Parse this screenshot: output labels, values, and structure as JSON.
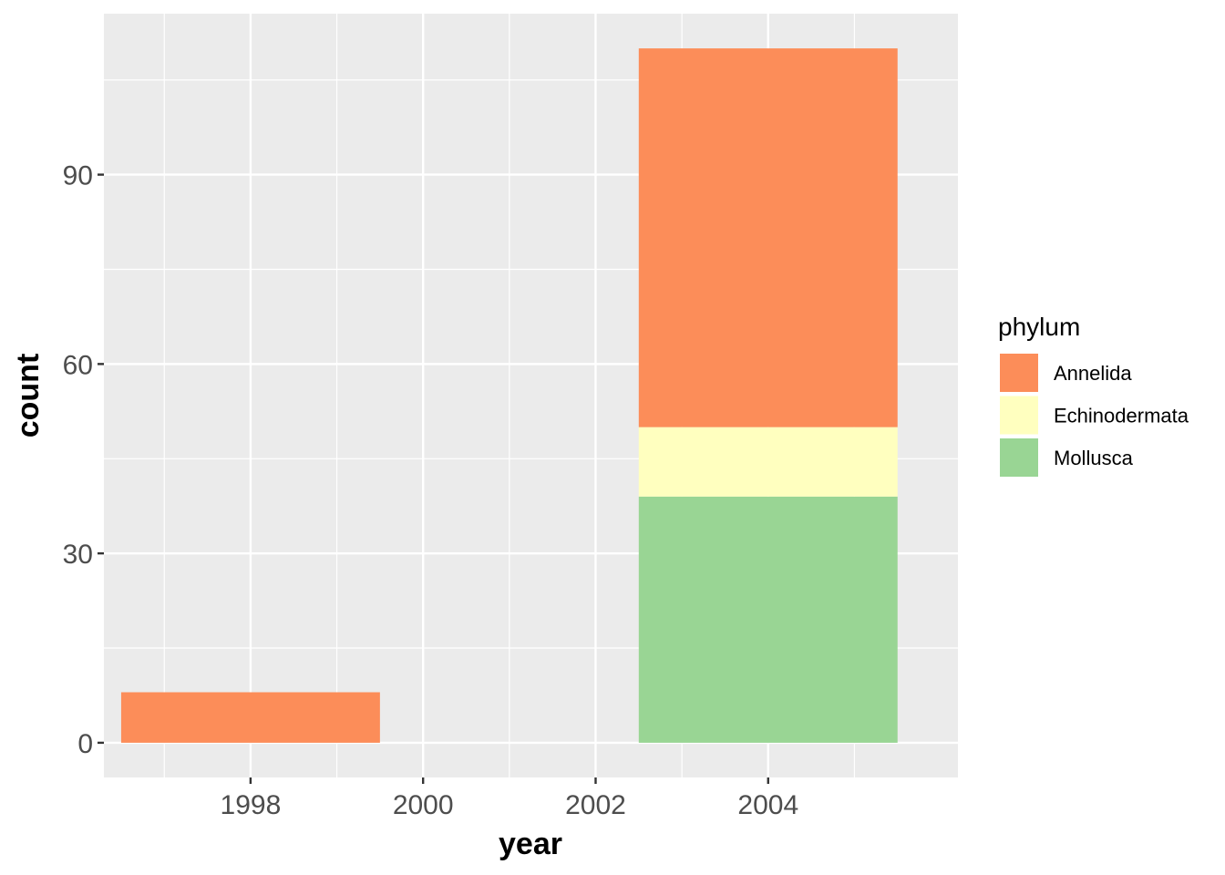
{
  "chart_data": {
    "type": "bar",
    "stacked": true,
    "xlabel": "year",
    "ylabel": "count",
    "x": [
      1998,
      2004
    ],
    "bar_width_years": 3,
    "xlim": [
      1996.3,
      2006.2
    ],
    "ylim": [
      -5.5,
      115.5
    ],
    "x_ticks": [
      1998,
      2000,
      2002,
      2004
    ],
    "y_ticks": [
      0,
      30,
      60,
      90
    ],
    "grid": true,
    "legend": {
      "title": "phylum",
      "position": "right"
    },
    "series": [
      {
        "name": "Mollusca",
        "color": "#99d594",
        "values": [
          0,
          39
        ]
      },
      {
        "name": "Echinodermata",
        "color": "#ffffbf",
        "values": [
          0,
          11
        ]
      },
      {
        "name": "Annelida",
        "color": "#fc8d59",
        "values": [
          8,
          60
        ]
      }
    ],
    "legend_order": [
      "Annelida",
      "Echinodermata",
      "Mollusca"
    ],
    "panel_background": "#ebebeb",
    "gridline_color": "#ffffff"
  }
}
